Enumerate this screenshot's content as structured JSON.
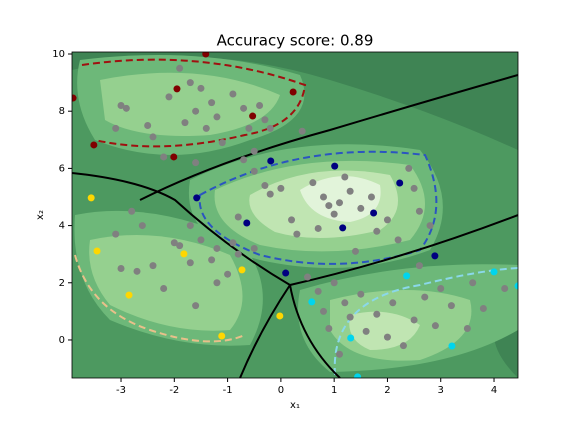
{
  "chart_data": {
    "type": "scatter",
    "title": "Accuracy score: 0.89",
    "x_label": "x₁",
    "y_label": "x₂",
    "xlim": [
      -3.92,
      4.45
    ],
    "ylim": [
      -1.33,
      10.07
    ],
    "xticks": [
      -3,
      -2,
      -1,
      0,
      1,
      2,
      3,
      4
    ],
    "yticks": [
      0,
      2,
      4,
      6,
      8,
      10
    ],
    "series": [
      {
        "color": "#808080",
        "x": [
          -3,
          -2.9,
          -3.1,
          -2.5,
          -2.4,
          -2.2,
          -2.1,
          -1.8,
          -1.7,
          -1.6,
          -1.5,
          -1.4,
          -1.3,
          -1.2,
          -1.1,
          -0.9,
          -0.7,
          -0.6,
          -0.4,
          -0.3,
          -0.5,
          -0.7,
          -1.6,
          0.4,
          -1.9,
          -0.2,
          -0.3,
          -0.2,
          0,
          0.6,
          0.8,
          1.1,
          1.2,
          1.3,
          0.9,
          1.0,
          1.5,
          1.7,
          2.0,
          2.4,
          2.6,
          2.5,
          0.2,
          0.3,
          0.7,
          1.8,
          2.2,
          -0.8,
          -0.5,
          1.4,
          2.8,
          -3.1,
          -3.0,
          -2.7,
          -2.4,
          -2.2,
          -2.0,
          -1.9,
          -1.7,
          -1.6,
          -1.5,
          -1.3,
          -1.2,
          -1.0,
          -0.8,
          -0.5,
          -2.6,
          -2.8,
          -1.7,
          -1.2,
          -0.9,
          0.7,
          0.8,
          0.9,
          1.0,
          1.2,
          1.3,
          1.5,
          1.6,
          1.8,
          2.0,
          2.1,
          2.3,
          2.5,
          2.7,
          2.9,
          3.0,
          3.2,
          3.5,
          3.8,
          4.2,
          3.6,
          2.6,
          1.1,
          0.5
        ],
        "values": [
          8.2,
          8.1,
          7.4,
          7.5,
          7.1,
          6.4,
          8.5,
          7.6,
          9.0,
          8.0,
          8.8,
          7.4,
          8.3,
          7.8,
          6.9,
          8.6,
          8.1,
          7.4,
          8.2,
          7.7,
          6.6,
          6.3,
          6.2,
          7.3,
          9.5,
          7.4,
          5.4,
          5.1,
          5.3,
          5.5,
          5.0,
          4.8,
          5.7,
          5.2,
          4.7,
          4.4,
          4.6,
          5.0,
          4.2,
          6.0,
          4.5,
          5.3,
          4.2,
          3.7,
          3.9,
          3.8,
          3.5,
          4.3,
          5.9,
          3.1,
          4.0,
          3.7,
          2.5,
          2.4,
          2.6,
          1.8,
          3.4,
          3.3,
          2.7,
          1.2,
          3.5,
          2.8,
          3.2,
          2.3,
          3.0,
          3.2,
          4.0,
          4.5,
          4.0,
          2.0,
          3.4,
          1.7,
          1.0,
          0.4,
          2.0,
          1.3,
          0.8,
          1.6,
          0.3,
          0.9,
          0.1,
          1.3,
          -0.2,
          0.7,
          1.5,
          0.5,
          1.8,
          1.2,
          0.4,
          1.1,
          1.8,
          2.0,
          2.6,
          -0.5,
          2.2
        ]
      },
      {
        "color": "#800000",
        "x": [
          -3.9,
          -3.51,
          -1.95,
          -2.01,
          -0.53,
          0.23,
          -1.41
        ],
        "values": [
          8.46,
          6.82,
          8.78,
          6.4,
          7.83,
          8.67,
          10.0
        ]
      },
      {
        "color": "#000080",
        "x": [
          1.01,
          -0.19,
          -1.58,
          -0.64,
          1.16,
          1.74,
          2.23,
          2.89,
          0.09
        ],
        "values": [
          6.08,
          6.26,
          4.97,
          4.09,
          3.92,
          4.44,
          5.49,
          2.94,
          2.34
        ]
      },
      {
        "color": "#ffd700",
        "x": [
          -3.56,
          -3.45,
          -2.85,
          -1.82,
          -0.73,
          -1.11,
          -0.02
        ],
        "values": [
          4.97,
          3.11,
          1.57,
          3.01,
          2.45,
          0.14,
          0.84
        ]
      },
      {
        "color": "#00d5ee",
        "x": [
          0.58,
          2.36,
          4.0,
          4.45,
          1.31,
          3.21,
          1.44
        ],
        "values": [
          1.33,
          2.24,
          2.38,
          1.89,
          0.07,
          -0.21,
          -1.29
        ]
      }
    ]
  }
}
